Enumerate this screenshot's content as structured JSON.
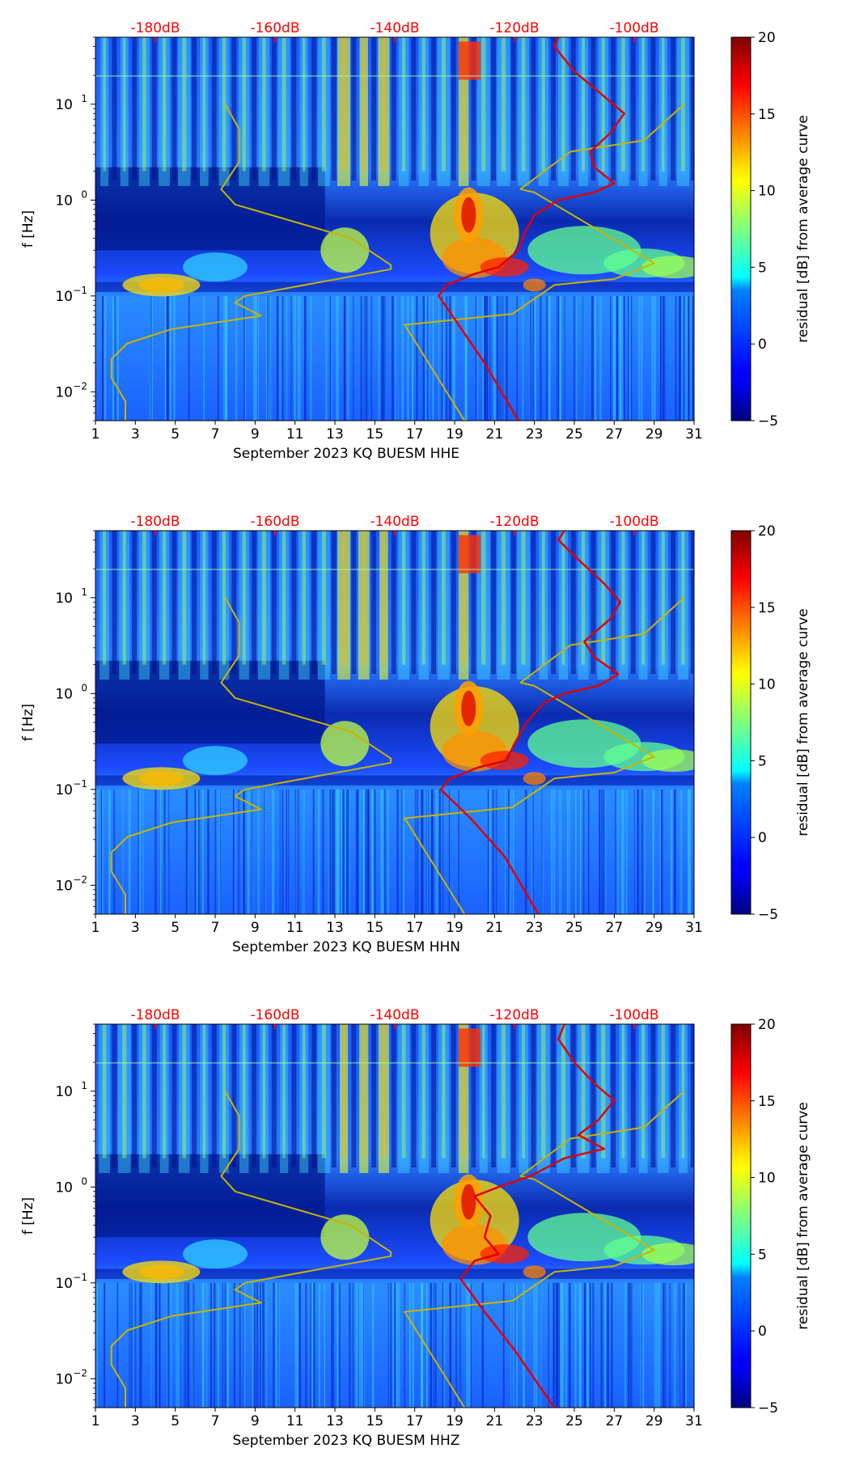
{
  "chart_data": [
    {
      "type": "heatmap",
      "title": "",
      "xlabel": "September 2023 KQ BUESM  HHE",
      "ylabel": "f [Hz]",
      "x_ticks": [
        1,
        3,
        5,
        7,
        9,
        11,
        13,
        15,
        17,
        19,
        21,
        23,
        25,
        27,
        29,
        31
      ],
      "xlim": [
        1,
        31
      ],
      "y_scale": "log",
      "ylim": [
        0.005,
        50
      ],
      "y_ticks": [
        {
          "value": 0.01,
          "base": "10",
          "exp": "−2"
        },
        {
          "value": 0.1,
          "base": "10",
          "exp": "−1"
        },
        {
          "value": 1,
          "base": "10",
          "exp": "0"
        },
        {
          "value": 10,
          "base": "10",
          "exp": "1"
        }
      ],
      "top_axis": {
        "labels": [
          "-180dB",
          "-160dB",
          "-140dB",
          "-120dB",
          "-100dB"
        ],
        "positions": [
          4,
          10,
          16,
          22,
          28
        ],
        "color": "#ff0000"
      },
      "colorbar": {
        "label": "residual [dB] from average curve",
        "range": [
          -5,
          20
        ],
        "ticks": [
          "−5",
          "0",
          "5",
          "10",
          "15",
          "20"
        ],
        "colormap": "jet"
      },
      "series": [
        {
          "name": "yellow overlay curve",
          "color": "#c8b400",
          "points": [
            [
              2.5,
              0.005
            ],
            [
              2.5,
              0.008
            ],
            [
              1.8,
              0.014
            ],
            [
              1.8,
              0.022
            ],
            [
              2.6,
              0.032
            ],
            [
              4.8,
              0.045
            ],
            [
              9.3,
              0.062
            ],
            [
              8.0,
              0.085
            ],
            [
              8.5,
              0.1
            ],
            [
              15.8,
              0.19
            ],
            [
              15.8,
              0.21
            ],
            [
              13.8,
              0.4
            ],
            [
              8.0,
              0.9
            ],
            [
              7.3,
              1.3
            ],
            [
              8.2,
              2.5
            ],
            [
              8.2,
              5.5
            ],
            [
              7.5,
              10
            ]
          ]
        },
        {
          "name": "yellow overlay curve 2",
          "color": "#c8b400",
          "points": [
            [
              19.5,
              0.005
            ],
            [
              16.5,
              0.05
            ],
            [
              21.9,
              0.065
            ],
            [
              24.0,
              0.13
            ],
            [
              27.0,
              0.15
            ],
            [
              29.0,
              0.22
            ],
            [
              23.0,
              1.2
            ],
            [
              22.3,
              1.3
            ],
            [
              24.8,
              3.2
            ],
            [
              28.5,
              4.2
            ],
            [
              30.5,
              10
            ]
          ]
        },
        {
          "name": "red overlay curve",
          "color": "#e00000",
          "points": [
            [
              22.2,
              0.005
            ],
            [
              20.5,
              0.02
            ],
            [
              19.2,
              0.05
            ],
            [
              18.2,
              0.1
            ],
            [
              18.6,
              0.13
            ],
            [
              20,
              0.17
            ],
            [
              21.2,
              0.2
            ],
            [
              22.2,
              0.3
            ],
            [
              22.5,
              0.45
            ],
            [
              23,
              0.7
            ],
            [
              24.2,
              1.0
            ],
            [
              26,
              1.2
            ],
            [
              27,
              1.5
            ],
            [
              26,
              2.2
            ],
            [
              25.8,
              3.2
            ],
            [
              26.8,
              5
            ],
            [
              27.5,
              8
            ],
            [
              26.5,
              12
            ],
            [
              25,
              22
            ],
            [
              24,
              40
            ],
            [
              24.2,
              50
            ]
          ]
        }
      ]
    },
    {
      "type": "heatmap",
      "title": "",
      "xlabel": "September 2023 KQ BUESM  HHN",
      "ylabel": "f [Hz]",
      "x_ticks": [
        1,
        3,
        5,
        7,
        9,
        11,
        13,
        15,
        17,
        19,
        21,
        23,
        25,
        27,
        29,
        31
      ],
      "xlim": [
        1,
        31
      ],
      "y_scale": "log",
      "ylim": [
        0.005,
        50
      ],
      "y_ticks": [
        {
          "value": 0.01,
          "base": "10",
          "exp": "−2"
        },
        {
          "value": 0.1,
          "base": "10",
          "exp": "−1"
        },
        {
          "value": 1,
          "base": "10",
          "exp": "0"
        },
        {
          "value": 10,
          "base": "10",
          "exp": "1"
        }
      ],
      "top_axis": {
        "labels": [
          "-180dB",
          "-160dB",
          "-140dB",
          "-120dB",
          "-100dB"
        ],
        "positions": [
          4,
          10,
          16,
          22,
          28
        ],
        "color": "#ff0000"
      },
      "colorbar": {
        "label": "residual [dB] from average curve",
        "range": [
          -5,
          20
        ],
        "ticks": [
          "−5",
          "0",
          "5",
          "10",
          "15",
          "20"
        ],
        "colormap": "jet"
      },
      "series": [
        {
          "name": "yellow overlay curve",
          "color": "#c8b400",
          "points": [
            [
              2.5,
              0.005
            ],
            [
              2.5,
              0.008
            ],
            [
              1.8,
              0.014
            ],
            [
              1.8,
              0.022
            ],
            [
              2.6,
              0.032
            ],
            [
              4.8,
              0.045
            ],
            [
              9.3,
              0.062
            ],
            [
              8.0,
              0.085
            ],
            [
              8.5,
              0.1
            ],
            [
              15.8,
              0.19
            ],
            [
              15.8,
              0.21
            ],
            [
              13.8,
              0.4
            ],
            [
              8.0,
              0.9
            ],
            [
              7.3,
              1.3
            ],
            [
              8.2,
              2.5
            ],
            [
              8.2,
              5.5
            ],
            [
              7.5,
              10
            ]
          ]
        },
        {
          "name": "yellow overlay curve 2",
          "color": "#c8b400",
          "points": [
            [
              19.5,
              0.005
            ],
            [
              16.5,
              0.05
            ],
            [
              21.9,
              0.065
            ],
            [
              24.0,
              0.13
            ],
            [
              27.0,
              0.15
            ],
            [
              29.0,
              0.22
            ],
            [
              23.0,
              1.2
            ],
            [
              22.3,
              1.3
            ],
            [
              24.8,
              3.2
            ],
            [
              28.5,
              4.2
            ],
            [
              30.5,
              10
            ]
          ]
        },
        {
          "name": "red overlay curve",
          "color": "#e00000",
          "points": [
            [
              23.2,
              0.005
            ],
            [
              21.5,
              0.02
            ],
            [
              19.8,
              0.05
            ],
            [
              18.3,
              0.1
            ],
            [
              18.8,
              0.13
            ],
            [
              20.2,
              0.17
            ],
            [
              21.6,
              0.2
            ],
            [
              22,
              0.3
            ],
            [
              22.6,
              0.5
            ],
            [
              23.5,
              0.8
            ],
            [
              24.5,
              1.0
            ],
            [
              26.2,
              1.2
            ],
            [
              27.2,
              1.6
            ],
            [
              26,
              2.4
            ],
            [
              25.5,
              3.5
            ],
            [
              26.8,
              6
            ],
            [
              27.3,
              9
            ],
            [
              26.5,
              14
            ],
            [
              25.2,
              25
            ],
            [
              24.2,
              40
            ],
            [
              24.5,
              50
            ]
          ]
        }
      ]
    },
    {
      "type": "heatmap",
      "title": "",
      "xlabel": "September 2023 KQ BUESM  HHZ",
      "ylabel": "f [Hz]",
      "x_ticks": [
        1,
        3,
        5,
        7,
        9,
        11,
        13,
        15,
        17,
        19,
        21,
        23,
        25,
        27,
        29,
        31
      ],
      "xlim": [
        1,
        31
      ],
      "y_scale": "log",
      "ylim": [
        0.005,
        50
      ],
      "y_ticks": [
        {
          "value": 0.01,
          "base": "10",
          "exp": "−2"
        },
        {
          "value": 0.1,
          "base": "10",
          "exp": "−1"
        },
        {
          "value": 1,
          "base": "10",
          "exp": "0"
        },
        {
          "value": 10,
          "base": "10",
          "exp": "1"
        }
      ],
      "top_axis": {
        "labels": [
          "-180dB",
          "-160dB",
          "-140dB",
          "-120dB",
          "-100dB"
        ],
        "positions": [
          4,
          10,
          16,
          22,
          28
        ],
        "color": "#ff0000"
      },
      "colorbar": {
        "label": "residual [dB] from average curve",
        "range": [
          -5,
          20
        ],
        "ticks": [
          "−5",
          "0",
          "5",
          "10",
          "15",
          "20"
        ],
        "colormap": "jet"
      },
      "series": [
        {
          "name": "yellow overlay curve",
          "color": "#c8b400",
          "points": [
            [
              2.5,
              0.005
            ],
            [
              2.5,
              0.008
            ],
            [
              1.8,
              0.014
            ],
            [
              1.8,
              0.022
            ],
            [
              2.6,
              0.032
            ],
            [
              4.8,
              0.045
            ],
            [
              9.3,
              0.062
            ],
            [
              8.0,
              0.085
            ],
            [
              8.5,
              0.1
            ],
            [
              15.8,
              0.19
            ],
            [
              15.8,
              0.21
            ],
            [
              13.8,
              0.4
            ],
            [
              8.0,
              0.9
            ],
            [
              7.3,
              1.3
            ],
            [
              8.2,
              2.5
            ],
            [
              8.2,
              5.5
            ],
            [
              7.5,
              10
            ]
          ]
        },
        {
          "name": "yellow overlay curve 2",
          "color": "#c8b400",
          "points": [
            [
              19.5,
              0.005
            ],
            [
              16.5,
              0.05
            ],
            [
              21.9,
              0.065
            ],
            [
              24.0,
              0.13
            ],
            [
              27.0,
              0.15
            ],
            [
              29.0,
              0.22
            ],
            [
              23.0,
              1.2
            ],
            [
              22.3,
              1.3
            ],
            [
              24.8,
              3.2
            ],
            [
              28.5,
              4.2
            ],
            [
              30.5,
              10
            ]
          ]
        },
        {
          "name": "red overlay curve",
          "color": "#e00000",
          "points": [
            [
              24.0,
              0.005
            ],
            [
              22.0,
              0.02
            ],
            [
              20.5,
              0.05
            ],
            [
              19.3,
              0.11
            ],
            [
              20,
              0.17
            ],
            [
              21.2,
              0.2
            ],
            [
              20.5,
              0.3
            ],
            [
              20.8,
              0.5
            ],
            [
              20,
              0.8
            ],
            [
              21.2,
              1.0
            ],
            [
              22.8,
              1.3
            ],
            [
              24.5,
              2.0
            ],
            [
              26.5,
              2.5
            ],
            [
              25.2,
              3.5
            ],
            [
              26.2,
              5
            ],
            [
              27,
              8
            ],
            [
              26,
              12
            ],
            [
              25,
              20
            ],
            [
              24.2,
              35
            ],
            [
              24.5,
              50
            ]
          ]
        }
      ]
    }
  ]
}
